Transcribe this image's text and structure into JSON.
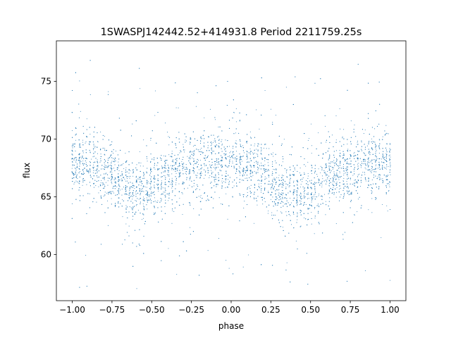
{
  "chart_data": {
    "type": "scatter",
    "title": "1SWASPJ142442.52+414931.8 Period 2211759.25s",
    "xlabel": "phase",
    "ylabel": "flux",
    "xlim": [
      -1.1,
      1.1
    ],
    "ylim": [
      56,
      78.5
    ],
    "xticks": [
      -1.0,
      -0.75,
      -0.5,
      -0.25,
      0.0,
      0.25,
      0.5,
      0.75,
      1.0
    ],
    "xtick_labels": [
      "−1.00",
      "−0.75",
      "−0.50",
      "−0.25",
      "0.00",
      "0.25",
      "0.50",
      "0.75",
      "1.00"
    ],
    "yticks": [
      60,
      65,
      70,
      75
    ],
    "ytick_labels": [
      "60",
      "65",
      "70",
      "75"
    ],
    "grid": false,
    "legend": "none",
    "marker_color": "#1f77b4",
    "series": [
      {
        "phase": [
          -1.0,
          -0.95,
          -0.9,
          -0.85,
          -0.8,
          -0.75,
          -0.7,
          -0.65,
          -0.6,
          -0.55,
          -0.5,
          -0.45,
          -0.4,
          -0.35,
          -0.3,
          -0.25,
          -0.2,
          -0.15,
          -0.1,
          -0.05,
          0.0,
          0.05,
          0.1,
          0.15,
          0.2,
          0.25,
          0.3,
          0.35,
          0.4,
          0.45,
          0.5,
          0.55,
          0.6,
          0.65,
          0.7,
          0.75,
          0.8,
          0.85,
          0.9,
          0.95,
          1.0
        ],
        "flux_mean": [
          67.8,
          68.0,
          67.9,
          67.6,
          67.2,
          66.8,
          66.3,
          66.0,
          65.6,
          65.6,
          66.0,
          66.4,
          66.8,
          67.0,
          67.2,
          67.4,
          67.6,
          67.8,
          67.9,
          67.9,
          67.8,
          67.8,
          67.6,
          67.3,
          67.0,
          66.5,
          66.0,
          65.6,
          65.3,
          65.3,
          65.6,
          66.0,
          66.4,
          66.8,
          67.1,
          67.3,
          67.5,
          67.7,
          67.8,
          67.8,
          67.8
        ],
        "flux_spread": 1.4,
        "outlier_range": [
          56.8,
          77.0
        ]
      }
    ]
  }
}
